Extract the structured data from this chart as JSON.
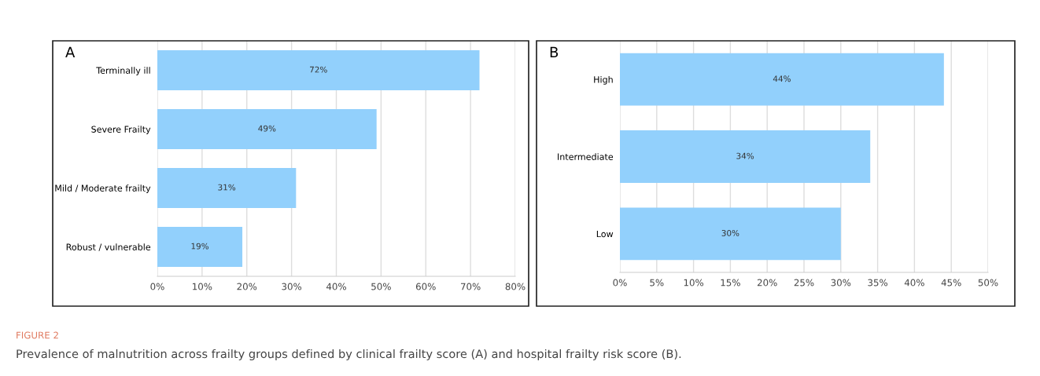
{
  "chart_data": [
    {
      "type": "bar",
      "orientation": "horizontal",
      "title": "A",
      "categories": [
        "Terminally ill",
        "Severe Frailty",
        "Mild / Moderate frailty",
        "Robust / vulnerable"
      ],
      "values": [
        72,
        49,
        31,
        19
      ],
      "value_labels": [
        "72%",
        "49%",
        "31%",
        "19%"
      ],
      "color": "#92d0fc",
      "xlim": [
        0,
        80
      ],
      "xticks": [
        {
          "value": 0,
          "label": "0%"
        },
        {
          "value": 10,
          "label": "10%"
        },
        {
          "value": 20,
          "label": "20%"
        },
        {
          "value": 30,
          "label": "30%"
        },
        {
          "value": 40,
          "label": "40%"
        },
        {
          "value": 50,
          "label": "50%"
        },
        {
          "value": 60,
          "label": "60%"
        },
        {
          "value": 70,
          "label": "70%"
        },
        {
          "value": 80,
          "label": "80%"
        }
      ],
      "grid": "x",
      "annotations": [
        "FIGURE 2"
      ]
    },
    {
      "type": "bar",
      "orientation": "horizontal",
      "title": "B",
      "categories": [
        "High",
        "Intermediate",
        "Low"
      ],
      "values": [
        44,
        34,
        30
      ],
      "value_labels": [
        "44%",
        "34%",
        "30%"
      ],
      "color": "#92d0fc",
      "xlim": [
        0,
        50
      ],
      "xticks": [
        {
          "value": 0,
          "label": "0%"
        },
        {
          "value": 5,
          "label": "5%"
        },
        {
          "value": 10,
          "label": "10%"
        },
        {
          "value": 15,
          "label": "15%"
        },
        {
          "value": 20,
          "label": "20%"
        },
        {
          "value": 25,
          "label": "25%"
        },
        {
          "value": 30,
          "label": "30%"
        },
        {
          "value": 35,
          "label": "35%"
        },
        {
          "value": 40,
          "label": "40%"
        },
        {
          "value": 45,
          "label": "45%"
        },
        {
          "value": 50,
          "label": "50%"
        }
      ],
      "grid": "x",
      "annotations": [
        "Prevalence of malnutrition across frailty groups defined by clinical frailty score (A) and hospital frailty risk score (B)."
      ]
    }
  ]
}
